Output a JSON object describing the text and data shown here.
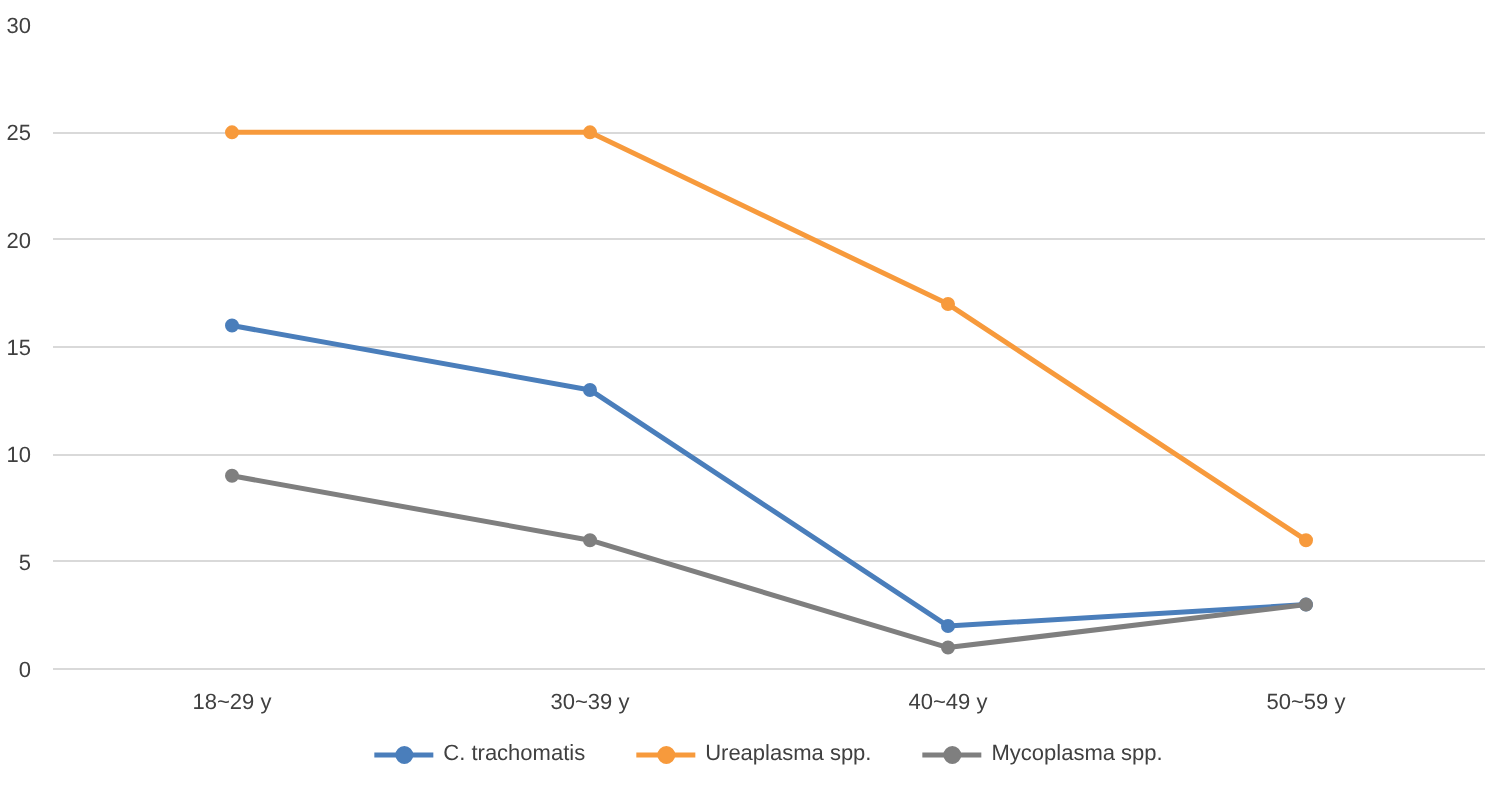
{
  "chart_data": {
    "type": "line",
    "categories": [
      "18~29 y",
      "30~39 y",
      "40~49 y",
      "50~59 y"
    ],
    "series": [
      {
        "name": "C. trachomatis",
        "color": "#4a7ebb",
        "values": [
          16,
          13,
          2,
          3
        ]
      },
      {
        "name": "Ureaplasma spp.",
        "color": "#f79a3c",
        "values": [
          25,
          25,
          17,
          6
        ]
      },
      {
        "name": "Mycoplasma spp.",
        "color": "#7f7f7f",
        "values": [
          9,
          6,
          1,
          3
        ]
      }
    ],
    "ylim": [
      0,
      30
    ],
    "yticks": [
      0,
      5,
      10,
      15,
      20,
      25,
      30
    ],
    "grid": "y",
    "legend": "bottom",
    "marker": "circle",
    "line_style": "solid"
  }
}
